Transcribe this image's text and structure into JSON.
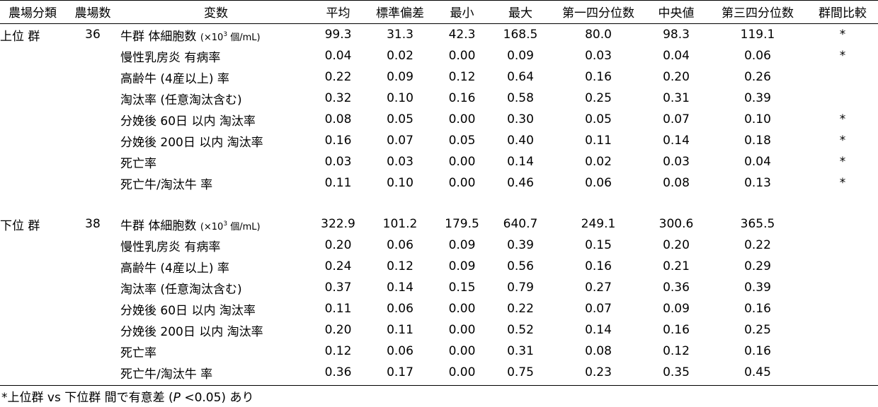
{
  "headers": [
    "農場分類",
    "農場数",
    "変数",
    "平均",
    "標準偏差",
    "最小",
    "最大",
    "第一四分位数",
    "中央値",
    "第三四分位数",
    "群間比較"
  ],
  "groups": [
    {
      "label": "上位 群",
      "count": "36",
      "rows": [
        {
          "var": "牛群 体細胞数",
          "unit_pre": "(×10",
          "unit_sup": "3",
          "unit_post": " 個/mL)",
          "values": [
            "99.3",
            "31.3",
            "42.3",
            "168.5",
            "80.0",
            "98.3",
            "119.1"
          ],
          "sig": "*"
        },
        {
          "var": "慢性乳房炎 有病率",
          "values": [
            "0.04",
            "0.02",
            "0.00",
            "0.09",
            "0.03",
            "0.04",
            "0.06"
          ],
          "sig": "*"
        },
        {
          "var": "高齢牛 (4産以上) 率",
          "values": [
            "0.22",
            "0.09",
            "0.12",
            "0.64",
            "0.16",
            "0.20",
            "0.26"
          ],
          "sig": ""
        },
        {
          "var": "淘汰率 (任意淘汰含む)",
          "values": [
            "0.32",
            "0.10",
            "0.16",
            "0.58",
            "0.25",
            "0.31",
            "0.39"
          ],
          "sig": ""
        },
        {
          "var": "分娩後 60日 以内 淘汰率",
          "values": [
            "0.08",
            "0.05",
            "0.00",
            "0.30",
            "0.05",
            "0.07",
            "0.10"
          ],
          "sig": "*"
        },
        {
          "var": "分娩後 200日 以内 淘汰率",
          "values": [
            "0.16",
            "0.07",
            "0.05",
            "0.40",
            "0.11",
            "0.14",
            "0.18"
          ],
          "sig": "*"
        },
        {
          "var": "死亡率",
          "values": [
            "0.03",
            "0.03",
            "0.00",
            "0.14",
            "0.02",
            "0.03",
            "0.04"
          ],
          "sig": "*"
        },
        {
          "var": "死亡牛/淘汰牛 率",
          "values": [
            "0.11",
            "0.10",
            "0.00",
            "0.46",
            "0.06",
            "0.08",
            "0.13"
          ],
          "sig": "*"
        }
      ]
    },
    {
      "label": "下位 群",
      "count": "38",
      "rows": [
        {
          "var": "牛群 体細胞数",
          "unit_pre": "(×10",
          "unit_sup": "3",
          "unit_post": " 個/mL)",
          "values": [
            "322.9",
            "101.2",
            "179.5",
            "640.7",
            "249.1",
            "300.6",
            "365.5"
          ],
          "sig": ""
        },
        {
          "var": "慢性乳房炎 有病率",
          "values": [
            "0.20",
            "0.06",
            "0.09",
            "0.39",
            "0.15",
            "0.20",
            "0.22"
          ],
          "sig": ""
        },
        {
          "var": "高齢牛 (4産以上) 率",
          "values": [
            "0.24",
            "0.12",
            "0.09",
            "0.56",
            "0.16",
            "0.21",
            "0.29"
          ],
          "sig": ""
        },
        {
          "var": "淘汰率 (任意淘汰含む)",
          "values": [
            "0.37",
            "0.14",
            "0.15",
            "0.79",
            "0.27",
            "0.36",
            "0.39"
          ],
          "sig": ""
        },
        {
          "var": "分娩後 60日 以内 淘汰率",
          "values": [
            "0.11",
            "0.06",
            "0.00",
            "0.22",
            "0.07",
            "0.09",
            "0.16"
          ],
          "sig": ""
        },
        {
          "var": "分娩後 200日 以内 淘汰率",
          "values": [
            "0.20",
            "0.11",
            "0.00",
            "0.52",
            "0.14",
            "0.16",
            "0.25"
          ],
          "sig": ""
        },
        {
          "var": "死亡率",
          "values": [
            "0.12",
            "0.06",
            "0.00",
            "0.31",
            "0.08",
            "0.12",
            "0.16"
          ],
          "sig": ""
        },
        {
          "var": "死亡牛/淘汰牛 率",
          "values": [
            "0.36",
            "0.17",
            "0.00",
            "0.75",
            "0.23",
            "0.35",
            "0.45"
          ],
          "sig": ""
        }
      ]
    }
  ],
  "footnote": {
    "pre": "*上位群 vs 下位群 間で有意差 (",
    "p": "P",
    "post": " <0.05) あり"
  }
}
